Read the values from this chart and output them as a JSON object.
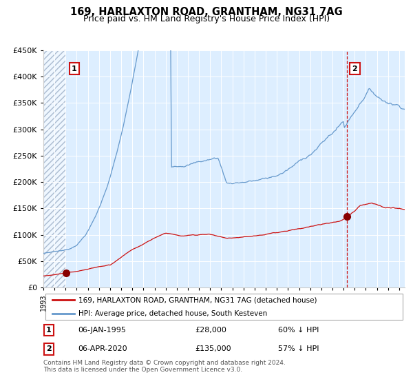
{
  "title": "169, HARLAXTON ROAD, GRANTHAM, NG31 7AG",
  "subtitle": "Price paid vs. HM Land Registry's House Price Index (HPI)",
  "title_fontsize": 10.5,
  "subtitle_fontsize": 9,
  "background_color": "#ffffff",
  "plot_bg_color": "#ddeeff",
  "hatch_color": "#aabbd0",
  "grid_color": "#ffffff",
  "red_line_color": "#cc1111",
  "blue_line_color": "#6699cc",
  "dashed_line_color": "#cc1111",
  "marker_color": "#880000",
  "ylim": [
    0,
    450000
  ],
  "purchase1_date": 1995.03,
  "purchase1_price": 28000,
  "purchase2_date": 2020.27,
  "purchase2_price": 135000,
  "legend_entries": [
    "169, HARLAXTON ROAD, GRANTHAM, NG31 7AG (detached house)",
    "HPI: Average price, detached house, South Kesteven"
  ],
  "annotation1_label": "1",
  "annotation2_label": "2",
  "ann1_date_str": "06-JAN-1995",
  "ann1_price_str": "£28,000",
  "ann1_hpi_str": "60% ↓ HPI",
  "ann2_date_str": "06-APR-2020",
  "ann2_price_str": "£135,000",
  "ann2_hpi_str": "57% ↓ HPI",
  "footer_text": "Contains HM Land Registry data © Crown copyright and database right 2024.\nThis data is licensed under the Open Government Licence v3.0.",
  "xstart": 1993.0,
  "xend": 2025.5
}
